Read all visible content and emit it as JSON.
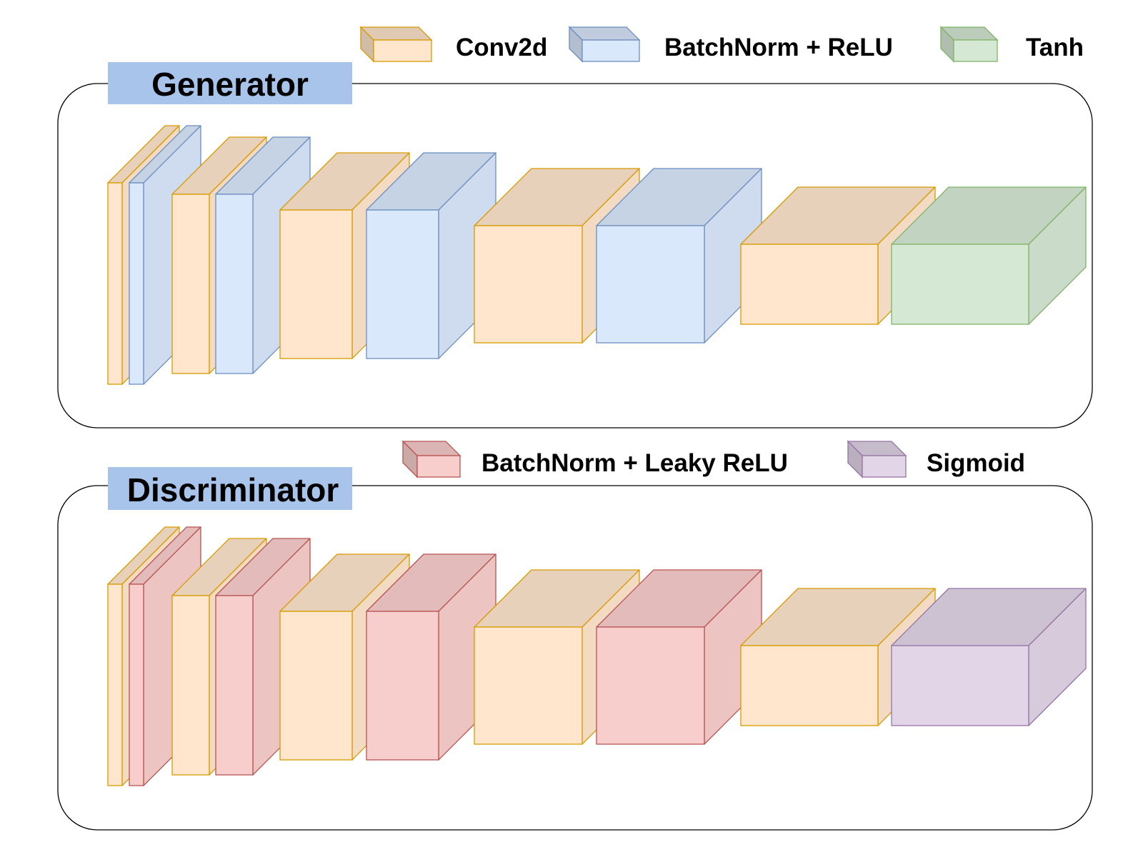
{
  "legend": [
    {
      "key": "conv",
      "label": "Conv2d"
    },
    {
      "key": "bnrelu",
      "label": "BatchNorm + ReLU"
    },
    {
      "key": "tanh",
      "label": "Tanh"
    },
    {
      "key": "bnleaky",
      "label": "BatchNorm + Leaky ReLU"
    },
    {
      "key": "sigmoid",
      "label": "Sigmoid"
    }
  ],
  "generator": {
    "title": "Generator",
    "layers": [
      "conv",
      "bnrelu",
      "conv",
      "bnrelu",
      "conv",
      "bnrelu",
      "conv",
      "bnrelu",
      "conv",
      "tanh"
    ]
  },
  "discriminator": {
    "title": "Discriminator",
    "layers": [
      "conv",
      "bnleaky",
      "conv",
      "bnleaky",
      "conv",
      "bnleaky",
      "conv",
      "bnleaky",
      "conv",
      "sigmoid"
    ]
  },
  "colors": {
    "conv": {
      "fill": "#ffe6cc",
      "stroke": "#d79b00"
    },
    "bnrelu": {
      "fill": "#dae8fc",
      "stroke": "#6c8ebf"
    },
    "tanh": {
      "fill": "#d5e8d4",
      "stroke": "#82b366"
    },
    "bnleaky": {
      "fill": "#f8cecc",
      "stroke": "#b85450"
    },
    "sigmoid": {
      "fill": "#e1d5e7",
      "stroke": "#9673a6"
    },
    "title_bg": "#a9c4eb"
  }
}
